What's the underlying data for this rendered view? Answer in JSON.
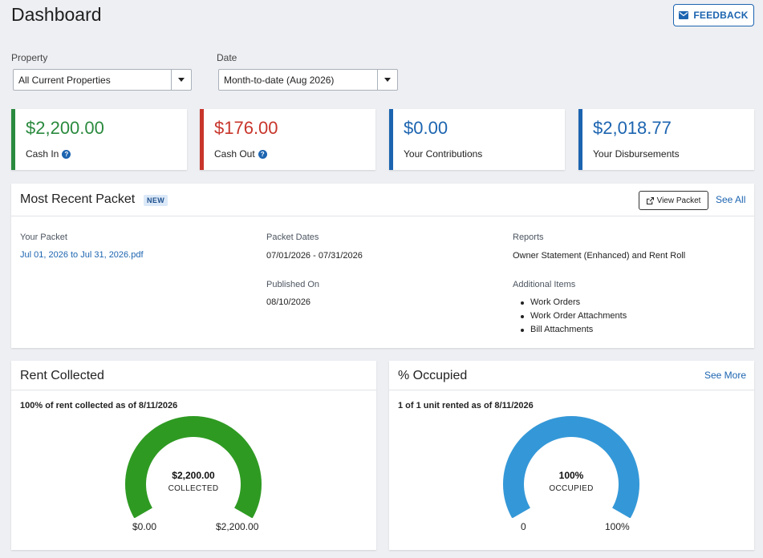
{
  "header": {
    "title": "Dashboard",
    "feedback_label": "FEEDBACK",
    "feedback_icon": "envelope-icon"
  },
  "filters": {
    "property_label": "Property",
    "property_value": "All Current Properties",
    "date_label": "Date",
    "date_value": "Month-to-date (Aug 2026)"
  },
  "stats": [
    {
      "amount": "$2,200.00",
      "label": "Cash In",
      "help": "?",
      "color": "#2a8a3e"
    },
    {
      "amount": "$176.00",
      "label": "Cash Out",
      "help": "?",
      "color": "#c8352b"
    },
    {
      "amount": "$0.00",
      "label": "Your Contributions",
      "color": "#1c64b0"
    },
    {
      "amount": "$2,018.77",
      "label": "Your Disbursements",
      "color": "#1c64b0"
    }
  ],
  "packet": {
    "title": "Most Recent Packet",
    "badge": "NEW",
    "view_button": "View Packet",
    "see_all": "See All",
    "your_packet_label": "Your Packet",
    "your_packet_link": "Jul 01, 2026 to Jul 31, 2026.pdf",
    "dates_label": "Packet Dates",
    "dates_value": "07/01/2026 - 07/31/2026",
    "published_label": "Published On",
    "published_value": "08/10/2026",
    "reports_label": "Reports",
    "reports_value": "Owner Statement (Enhanced) and Rent Roll",
    "additional_label": "Additional Items",
    "additional_items": [
      "Work Orders",
      "Work Order Attachments",
      "Bill Attachments"
    ]
  },
  "rent": {
    "title": "Rent Collected",
    "caption": "100% of rent collected as of 8/11/2026",
    "center_value": "$2,200.00",
    "center_sub": "COLLECTED",
    "min_label": "$0.00",
    "max_label": "$2,200.00",
    "fraction": 1.0,
    "color": "#2e9a22"
  },
  "occupied": {
    "title": "% Occupied",
    "see_more": "See More",
    "caption": "1 of 1 unit rented as of 8/11/2026",
    "center_value": "100%",
    "center_sub": "OCCUPIED",
    "min_label": "0",
    "max_label": "100%",
    "fraction": 1.0,
    "color": "#3498d8"
  }
}
